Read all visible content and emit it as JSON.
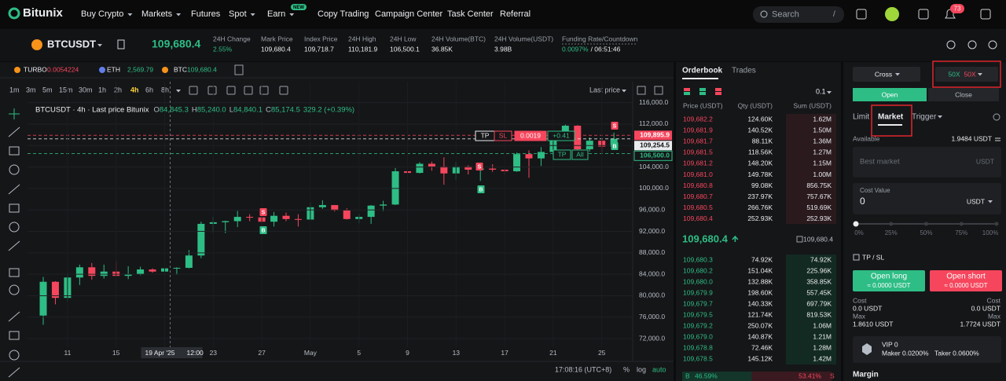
{
  "nav": {
    "logo": "Bitunix",
    "items": [
      "Buy Crypto",
      "Markets",
      "Futures",
      "Spot",
      "Earn",
      "Copy Trading",
      "Campaign Center",
      "Task Center",
      "Referral"
    ],
    "new_badge": "NEW",
    "search": "Search",
    "search_key": "/",
    "notifications": "73"
  },
  "ticker": {
    "symbol": "BTCUSDT",
    "price": "109,680.4",
    "stats": [
      {
        "label": "24H Change",
        "value": "2.55%"
      },
      {
        "label": "Mark Price",
        "value": "109,680.4"
      },
      {
        "label": "Index Price",
        "value": "109,718.7"
      },
      {
        "label": "24H High",
        "value": "110,181.9"
      },
      {
        "label": "24H Low",
        "value": "106,500.1"
      },
      {
        "label": "24H Volume(BTC)",
        "value": "36.85K"
      },
      {
        "label": "24H Volume(USDT)",
        "value": "3.98B"
      },
      {
        "label": "Funding Rate/Countdown",
        "value": "0.0097%",
        "extra": "/ 06:51:46"
      }
    ]
  },
  "watchlist": [
    {
      "name": "TURBO",
      "price": "0.0054224"
    },
    {
      "name": "ETH",
      "price": "2,569.79"
    },
    {
      "name": "BTC",
      "price": "109,680.4"
    }
  ],
  "toolbar": {
    "intervals": [
      "1m",
      "3m",
      "5m",
      "15m",
      "30m",
      "1h",
      "2h",
      "4h",
      "6h",
      "8h"
    ],
    "price_type": "Last price"
  },
  "chart_data": {
    "type": "candlestick",
    "title": "BTCUSDT · 4h · Last price Bitunix",
    "ohlc": [
      {
        "key": "O",
        "value": "84,845.3"
      },
      {
        "key": "H",
        "value": "85,240.0"
      },
      {
        "key": "L",
        "value": "84,840.1"
      },
      {
        "key": "C",
        "value": "85,174.5"
      }
    ],
    "change": "329.2 (+0.39%)",
    "categories": [
      null,
      null,
      "11",
      null,
      null,
      null,
      "15",
      null,
      null,
      null,
      "19 Apr '25",
      null,
      null,
      null,
      "23",
      null,
      null,
      null,
      "27",
      null,
      null,
      null,
      "May",
      null,
      null,
      null,
      "5",
      null,
      null,
      null,
      "9",
      null,
      null,
      null,
      "13",
      null,
      null,
      null,
      "17",
      null,
      null,
      null,
      "21",
      null,
      null,
      null,
      "25",
      null
    ],
    "crosshair_time": "12:00",
    "candles": [
      [
        76300,
        83500,
        74600,
        82600
      ],
      [
        82600,
        82700,
        78400,
        79600
      ],
      [
        79600,
        84200,
        78900,
        83400
      ],
      [
        83400,
        85800,
        82000,
        85300
      ],
      [
        85300,
        86100,
        83000,
        83700
      ],
      [
        83700,
        85800,
        83200,
        84500
      ],
      [
        84500,
        86400,
        83600,
        83700
      ],
      [
        83700,
        85500,
        83100,
        84000
      ],
      [
        84000,
        85400,
        83800,
        84900
      ],
      [
        84900,
        85100,
        84300,
        84500
      ],
      [
        84500,
        85600,
        84300,
        85100
      ],
      [
        85100,
        85300,
        83900,
        85200
      ],
      [
        85200,
        88500,
        85100,
        87500
      ],
      [
        87500,
        93800,
        87000,
        93400
      ],
      [
        93400,
        94700,
        91800,
        93700
      ],
      [
        93700,
        94000,
        91700,
        93900
      ],
      [
        93900,
        95800,
        92800,
        94700
      ],
      [
        94700,
        95200,
        93900,
        94600
      ],
      [
        94600,
        95300,
        93600,
        93800
      ],
      [
        93800,
        95600,
        92900,
        94900
      ],
      [
        94900,
        95500,
        93900,
        94300
      ],
      [
        94300,
        95200,
        92900,
        94200
      ],
      [
        94200,
        97400,
        94100,
        96500
      ],
      [
        96500,
        97800,
        96200,
        96900
      ],
      [
        96900,
        96900,
        95700,
        95900
      ],
      [
        95900,
        96300,
        94200,
        94300
      ],
      [
        94300,
        95200,
        93500,
        94700
      ],
      [
        94700,
        96900,
        93400,
        96800
      ],
      [
        96800,
        97700,
        95800,
        97000
      ],
      [
        97000,
        103800,
        96900,
        103200
      ],
      [
        103200,
        104300,
        102300,
        102900
      ],
      [
        102900,
        104900,
        102800,
        104600
      ],
      [
        104600,
        105000,
        103300,
        104100
      ],
      [
        104100,
        105800,
        100700,
        102800
      ],
      [
        102800,
        104900,
        101500,
        104100
      ],
      [
        104100,
        104300,
        102600,
        103500
      ],
      [
        103500,
        104200,
        101400,
        103700
      ],
      [
        103700,
        104500,
        103100,
        103500
      ],
      [
        103500,
        103700,
        102600,
        103200
      ],
      [
        103200,
        106700,
        103100,
        106400
      ],
      [
        106400,
        107100,
        102000,
        105600
      ],
      [
        105600,
        107700,
        104200,
        106800
      ],
      [
        106800,
        110700,
        106100,
        109700
      ],
      [
        109700,
        111900,
        109300,
        111700
      ],
      [
        111700,
        111800,
        106800,
        107300
      ],
      [
        107300,
        109500,
        106900,
        108900
      ],
      [
        108900,
        109300,
        106700,
        107800
      ],
      [
        107800,
        110400,
        107700,
        109250
      ]
    ],
    "ylim": [
      70400,
      119900
    ],
    "yticks": [
      {
        "value": 116000,
        "label": "116,000.0"
      },
      {
        "value": 112000,
        "label": "112,000.0"
      },
      {
        "value": 108000,
        "label": "108,000.0"
      },
      {
        "value": 104000,
        "label": "104,000.0"
      },
      {
        "value": 100000,
        "label": "100,000.0"
      },
      {
        "value": 96000,
        "label": "96,000.0"
      },
      {
        "value": 92000,
        "label": "92,000.0"
      },
      {
        "value": 88000,
        "label": "88,000.0"
      },
      {
        "value": 84000,
        "label": "84,000.0"
      },
      {
        "value": 80000,
        "label": "80,000.0"
      },
      {
        "value": 76000,
        "label": "76,000.0"
      },
      {
        "value": 72000,
        "label": "72,000.0"
      }
    ],
    "grid": true,
    "up_color": "#2ebd85",
    "down_color": "#f6465d",
    "price_lines": [
      {
        "value": 109895.9,
        "label": "109,895.9",
        "color": "#f6465d"
      },
      {
        "value": 109254.5,
        "label": "109,254.5",
        "color": "#eaecef"
      },
      {
        "value": 106500.0,
        "label": "106,500.0",
        "color": "#2ebd85"
      }
    ],
    "signals": [
      "S",
      "B",
      "S",
      "B",
      "S",
      "B"
    ],
    "order_tags": [
      "TP",
      "SL",
      "0.0019",
      "+0.41",
      "TP",
      "All"
    ],
    "footer": {
      "time": "17:08:16 (UTC+8)",
      "percent": "%",
      "log": "log",
      "auto": "auto"
    }
  },
  "orderbook": {
    "tabs": [
      "Orderbook",
      "Trades"
    ],
    "precision": "0.1",
    "headers": [
      "Price (USDT)",
      "Qty (USDT)",
      "Sum (USDT)"
    ],
    "asks": [
      [
        "109,682.2",
        "124.60K",
        "1.62M"
      ],
      [
        "109,681.9",
        "140.52K",
        "1.50M"
      ],
      [
        "109,681.7",
        "88.11K",
        "1.36M"
      ],
      [
        "109,681.5",
        "118.56K",
        "1.27M"
      ],
      [
        "109,681.2",
        "148.20K",
        "1.15M"
      ],
      [
        "109,681.0",
        "149.78K",
        "1.00M"
      ],
      [
        "109,680.8",
        "99.08K",
        "856.75K"
      ],
      [
        "109,680.7",
        "237.97K",
        "757.67K"
      ],
      [
        "109,680.5",
        "266.76K",
        "519.69K"
      ],
      [
        "109,680.4",
        "252.93K",
        "252.93K"
      ]
    ],
    "last_price": "109,680.4",
    "mark_price": "109,680.4",
    "bids": [
      [
        "109,680.3",
        "74.92K",
        "74.92K"
      ],
      [
        "109,680.2",
        "151.04K",
        "225.96K"
      ],
      [
        "109,680.0",
        "132.88K",
        "358.85K"
      ],
      [
        "109,679.9",
        "198.60K",
        "557.45K"
      ],
      [
        "109,679.7",
        "140.33K",
        "697.79K"
      ],
      [
        "109,679.5",
        "121.74K",
        "819.53K"
      ],
      [
        "109,679.2",
        "250.07K",
        "1.06M"
      ],
      [
        "109,679.0",
        "140.87K",
        "1.21M"
      ],
      [
        "109,678.8",
        "72.46K",
        "1.28M"
      ],
      [
        "109,678.5",
        "145.12K",
        "1.42M"
      ]
    ],
    "ratio": {
      "buy_label": "B",
      "buy": "46.59%",
      "sell": "53.41%",
      "sell_label": "S"
    }
  },
  "trade": {
    "margin_mode": "Cross",
    "leverage_long": "50X",
    "leverage_short": "50X",
    "tabs": [
      "Open",
      "Close"
    ],
    "order_types": [
      "Limit",
      "Market",
      "Trigger"
    ],
    "available_label": "Available",
    "available": "1.9484 USDT",
    "price_placeholder": "Best market",
    "price_unit": "USDT",
    "cost_label": "Cost Value",
    "cost_value": "0",
    "cost_unit": "USDT",
    "slider": [
      "0%",
      "25%",
      "50%",
      "75%",
      "100%"
    ],
    "tpsl": "TP / SL",
    "long": {
      "label": "Open long",
      "sub": "≈ 0.0000 USDT",
      "cost_label": "Cost",
      "cost": "0.0 USDT",
      "max_label": "Max",
      "max": "1.8610 USDT"
    },
    "short": {
      "label": "Open short",
      "sub": "≈ 0.0000 USDT",
      "cost_label": "Cost",
      "cost": "0.0 USDT",
      "max_label": "Max",
      "max": "1.7724 USDT"
    },
    "vip": "VIP 0",
    "maker": "Maker 0.0200%",
    "taker": "Taker 0.0600%",
    "margin": "Margin"
  }
}
